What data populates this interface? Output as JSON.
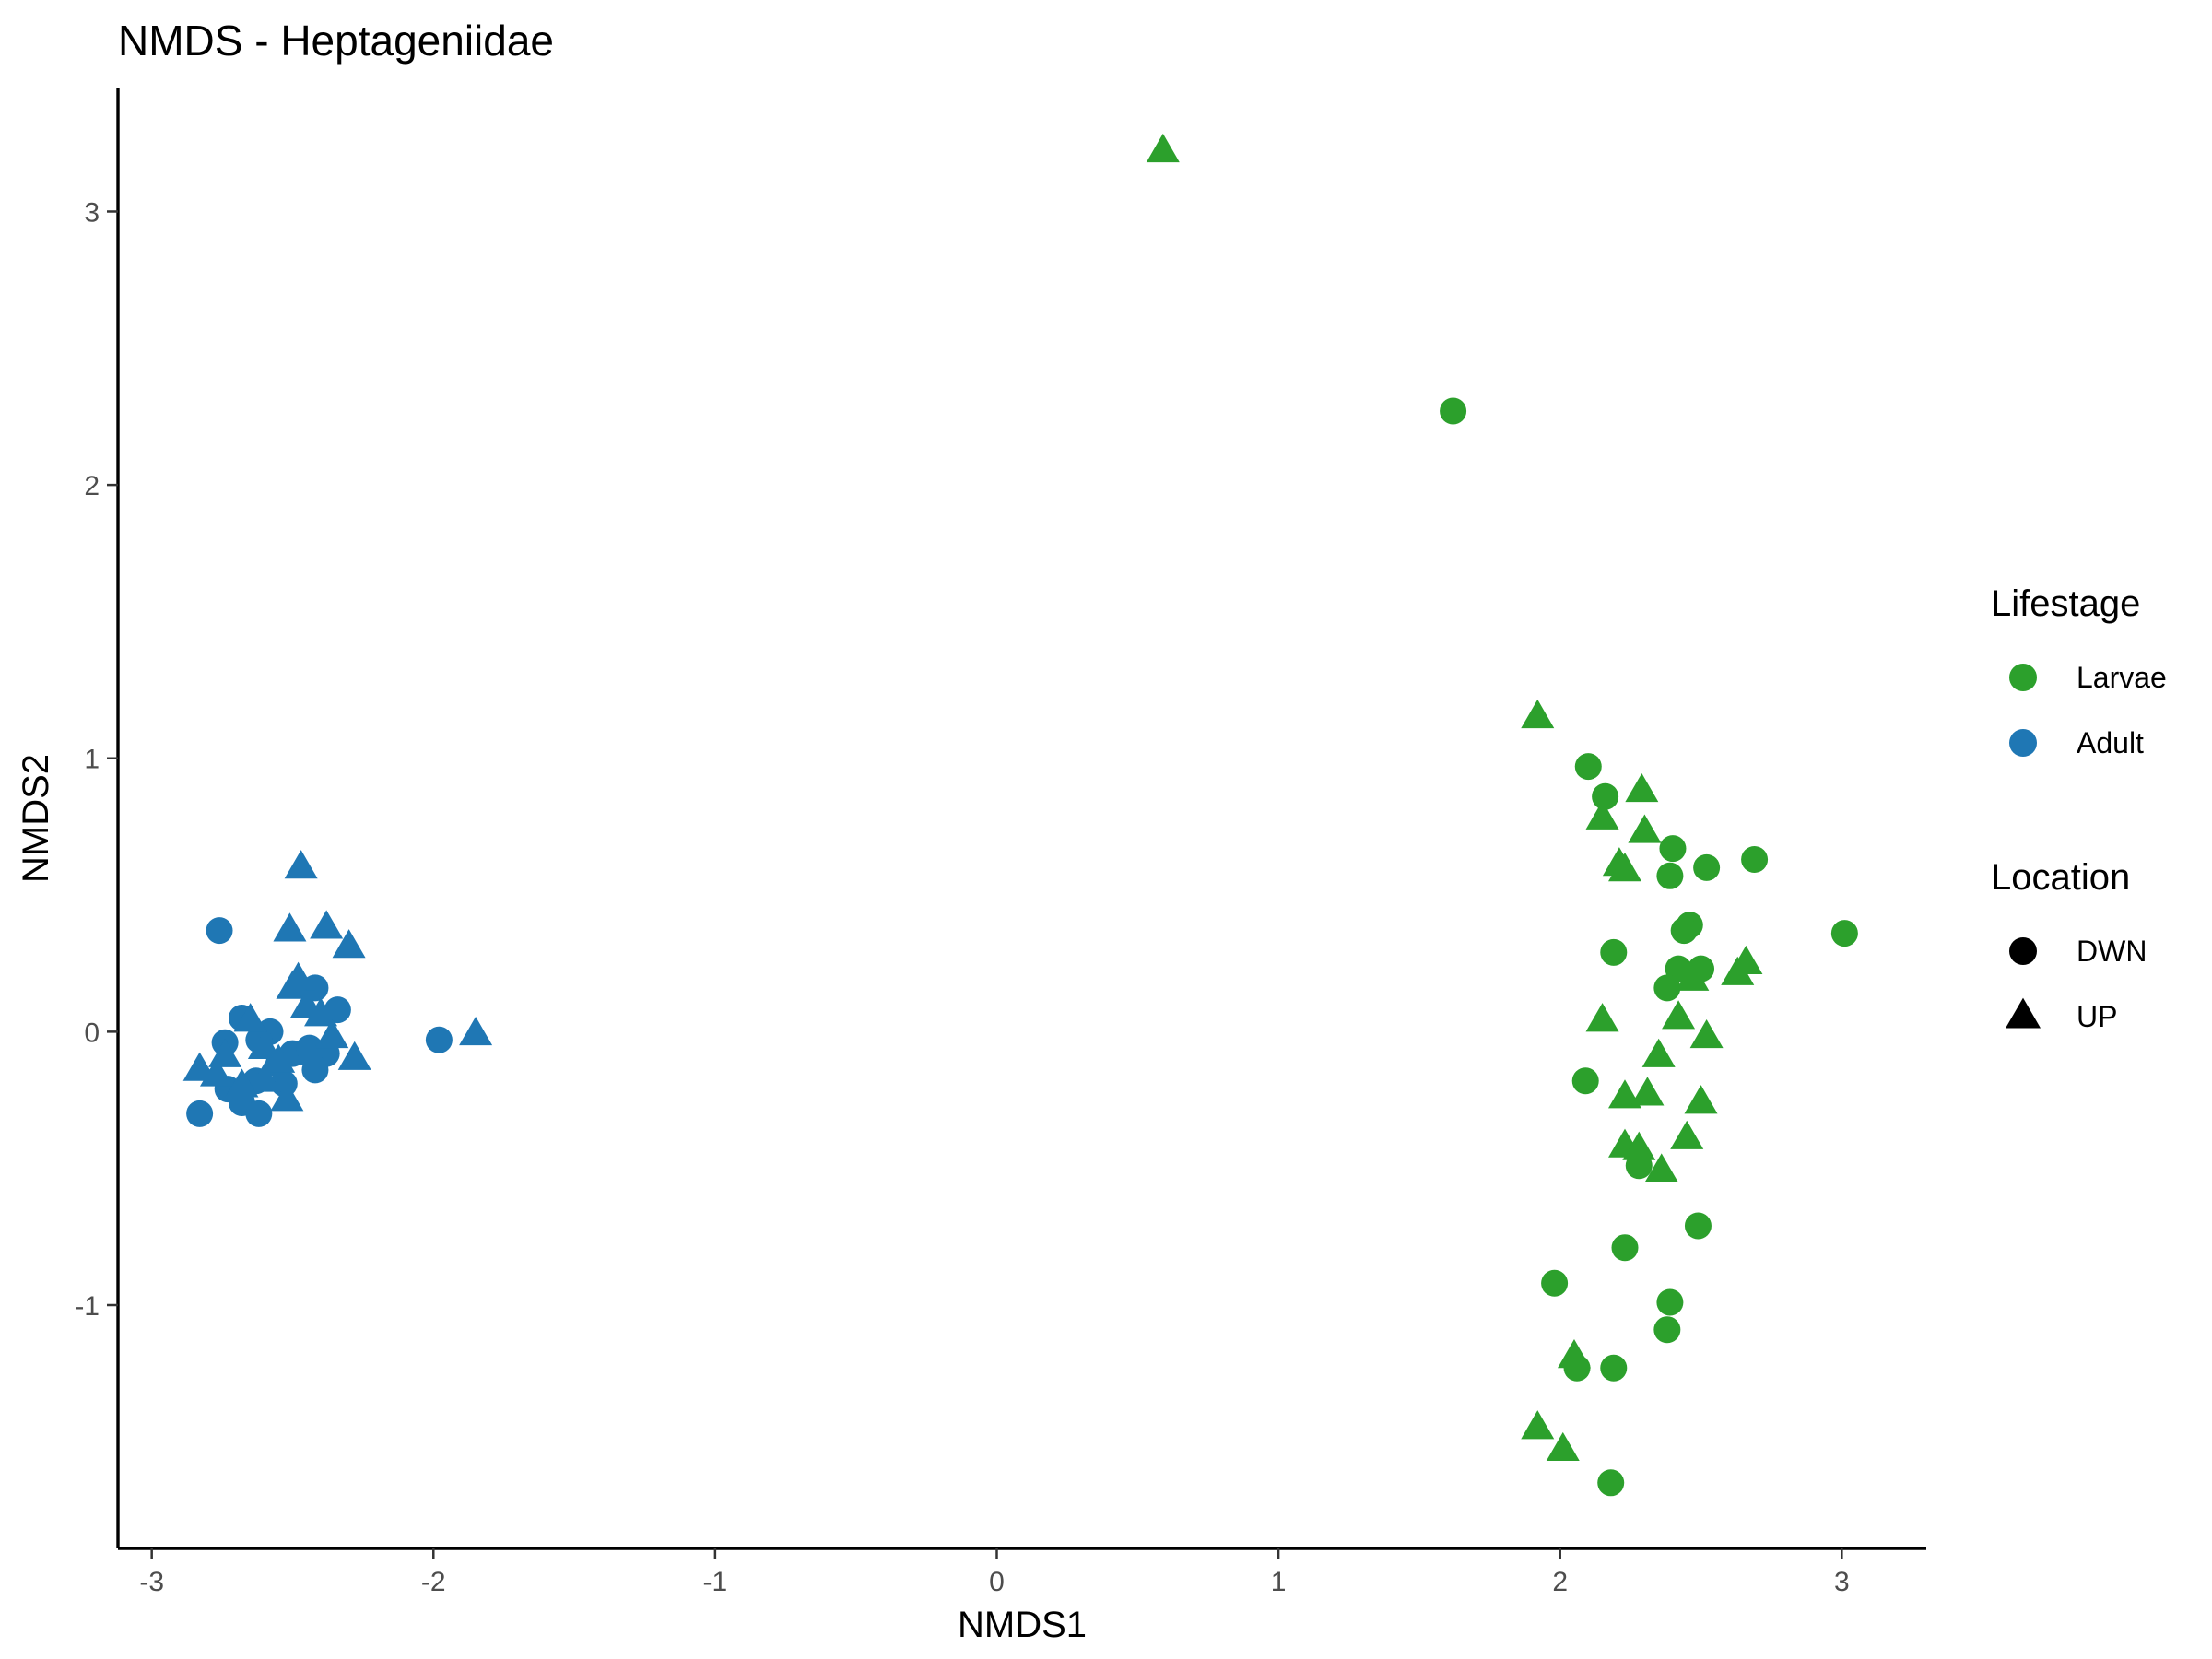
{
  "chart_data": {
    "type": "scatter",
    "title": "NMDS - Heptageniidae",
    "xlabel": "NMDS1",
    "ylabel": "NMDS2",
    "xlim": [
      -3.12,
      3.3
    ],
    "ylim": [
      -1.89,
      3.45
    ],
    "xticks": [
      -3,
      -2,
      -1,
      0,
      1,
      2,
      3
    ],
    "xtick_labels": [
      "-3",
      "-2",
      "-1",
      "0",
      "1",
      "2",
      "3"
    ],
    "yticks": [
      -1,
      0,
      1,
      2,
      3
    ],
    "ytick_labels": [
      "-1",
      "0",
      "1",
      "2",
      "3"
    ],
    "grid": false,
    "legend_position": "right",
    "legends": [
      {
        "title": "Lifestage",
        "entries": [
          {
            "label": "Larvae",
            "shape": "circle",
            "color": "#2ca02c"
          },
          {
            "label": "Adult",
            "shape": "circle",
            "color": "#1f77b4"
          }
        ]
      },
      {
        "title": "Location",
        "entries": [
          {
            "label": "DWN",
            "shape": "circle",
            "color": "#000000"
          },
          {
            "label": "UP",
            "shape": "triangle",
            "color": "#000000"
          }
        ]
      }
    ],
    "colors": {
      "Larvae": "#2ca02c",
      "Adult": "#1f77b4"
    },
    "series": [
      {
        "lifestage": "Larvae",
        "location": "DWN",
        "points": [
          [
            1.62,
            2.27
          ],
          [
            2.1,
            0.97
          ],
          [
            2.16,
            0.86
          ],
          [
            2.4,
            0.67
          ],
          [
            2.52,
            0.6
          ],
          [
            2.69,
            0.63
          ],
          [
            2.39,
            0.57
          ],
          [
            3.01,
            0.36
          ],
          [
            2.19,
            0.29
          ],
          [
            2.46,
            0.39
          ],
          [
            2.44,
            0.37
          ],
          [
            2.42,
            0.23
          ],
          [
            2.5,
            0.23
          ],
          [
            2.38,
            0.16
          ],
          [
            2.09,
            -0.18
          ],
          [
            2.28,
            -0.49
          ],
          [
            2.49,
            -0.71
          ],
          [
            2.23,
            -0.79
          ],
          [
            1.98,
            -0.92
          ],
          [
            2.39,
            -0.99
          ],
          [
            2.38,
            -1.09
          ],
          [
            2.06,
            -1.23
          ],
          [
            2.19,
            -1.23
          ],
          [
            2.18,
            -1.65
          ]
        ]
      },
      {
        "lifestage": "Larvae",
        "location": "UP",
        "points": [
          [
            0.59,
            3.22
          ],
          [
            1.92,
            1.15
          ],
          [
            2.29,
            0.88
          ],
          [
            2.15,
            0.78
          ],
          [
            2.3,
            0.73
          ],
          [
            2.21,
            0.61
          ],
          [
            2.23,
            0.59
          ],
          [
            2.63,
            0.21
          ],
          [
            2.66,
            0.25
          ],
          [
            2.47,
            0.19
          ],
          [
            2.15,
            0.04
          ],
          [
            2.42,
            0.05
          ],
          [
            2.52,
            -0.02
          ],
          [
            2.35,
            -0.09
          ],
          [
            2.23,
            -0.24
          ],
          [
            2.31,
            -0.23
          ],
          [
            2.5,
            -0.26
          ],
          [
            2.45,
            -0.39
          ],
          [
            2.23,
            -0.42
          ],
          [
            2.28,
            -0.43
          ],
          [
            2.36,
            -0.51
          ],
          [
            2.05,
            -1.19
          ],
          [
            1.92,
            -1.45
          ],
          [
            2.01,
            -1.53
          ]
        ]
      },
      {
        "lifestage": "Adult",
        "location": "DWN",
        "points": [
          [
            -2.76,
            0.37
          ],
          [
            -2.42,
            0.16
          ],
          [
            -2.34,
            0.08
          ],
          [
            -2.58,
            0.0
          ],
          [
            -2.68,
            0.05
          ],
          [
            -2.74,
            -0.04
          ],
          [
            -2.62,
            -0.03
          ],
          [
            -2.5,
            -0.08
          ],
          [
            -2.44,
            -0.06
          ],
          [
            -2.38,
            -0.08
          ],
          [
            -2.42,
            -0.14
          ],
          [
            -2.55,
            -0.12
          ],
          [
            -2.63,
            -0.18
          ],
          [
            -2.73,
            -0.21
          ],
          [
            -2.68,
            -0.26
          ],
          [
            -2.62,
            -0.3
          ],
          [
            -2.83,
            -0.3
          ],
          [
            -2.53,
            -0.19
          ],
          [
            -1.98,
            -0.03
          ]
        ]
      },
      {
        "lifestage": "Adult",
        "location": "UP",
        "points": [
          [
            -2.47,
            0.6
          ],
          [
            -2.51,
            0.37
          ],
          [
            -2.38,
            0.38
          ],
          [
            -2.3,
            0.31
          ],
          [
            -2.48,
            0.19
          ],
          [
            -2.5,
            0.16
          ],
          [
            -2.45,
            0.09
          ],
          [
            -2.4,
            0.06
          ],
          [
            -2.65,
            0.04
          ],
          [
            -2.36,
            -0.02
          ],
          [
            -2.6,
            -0.06
          ],
          [
            -2.28,
            -0.1
          ],
          [
            -2.44,
            -0.08
          ],
          [
            -2.55,
            -0.11
          ],
          [
            -2.74,
            -0.09
          ],
          [
            -2.83,
            -0.14
          ],
          [
            -2.77,
            -0.16
          ],
          [
            -2.6,
            -0.18
          ],
          [
            -2.68,
            -0.2
          ],
          [
            -2.52,
            -0.25
          ],
          [
            -1.85,
            -0.01
          ]
        ]
      }
    ]
  }
}
